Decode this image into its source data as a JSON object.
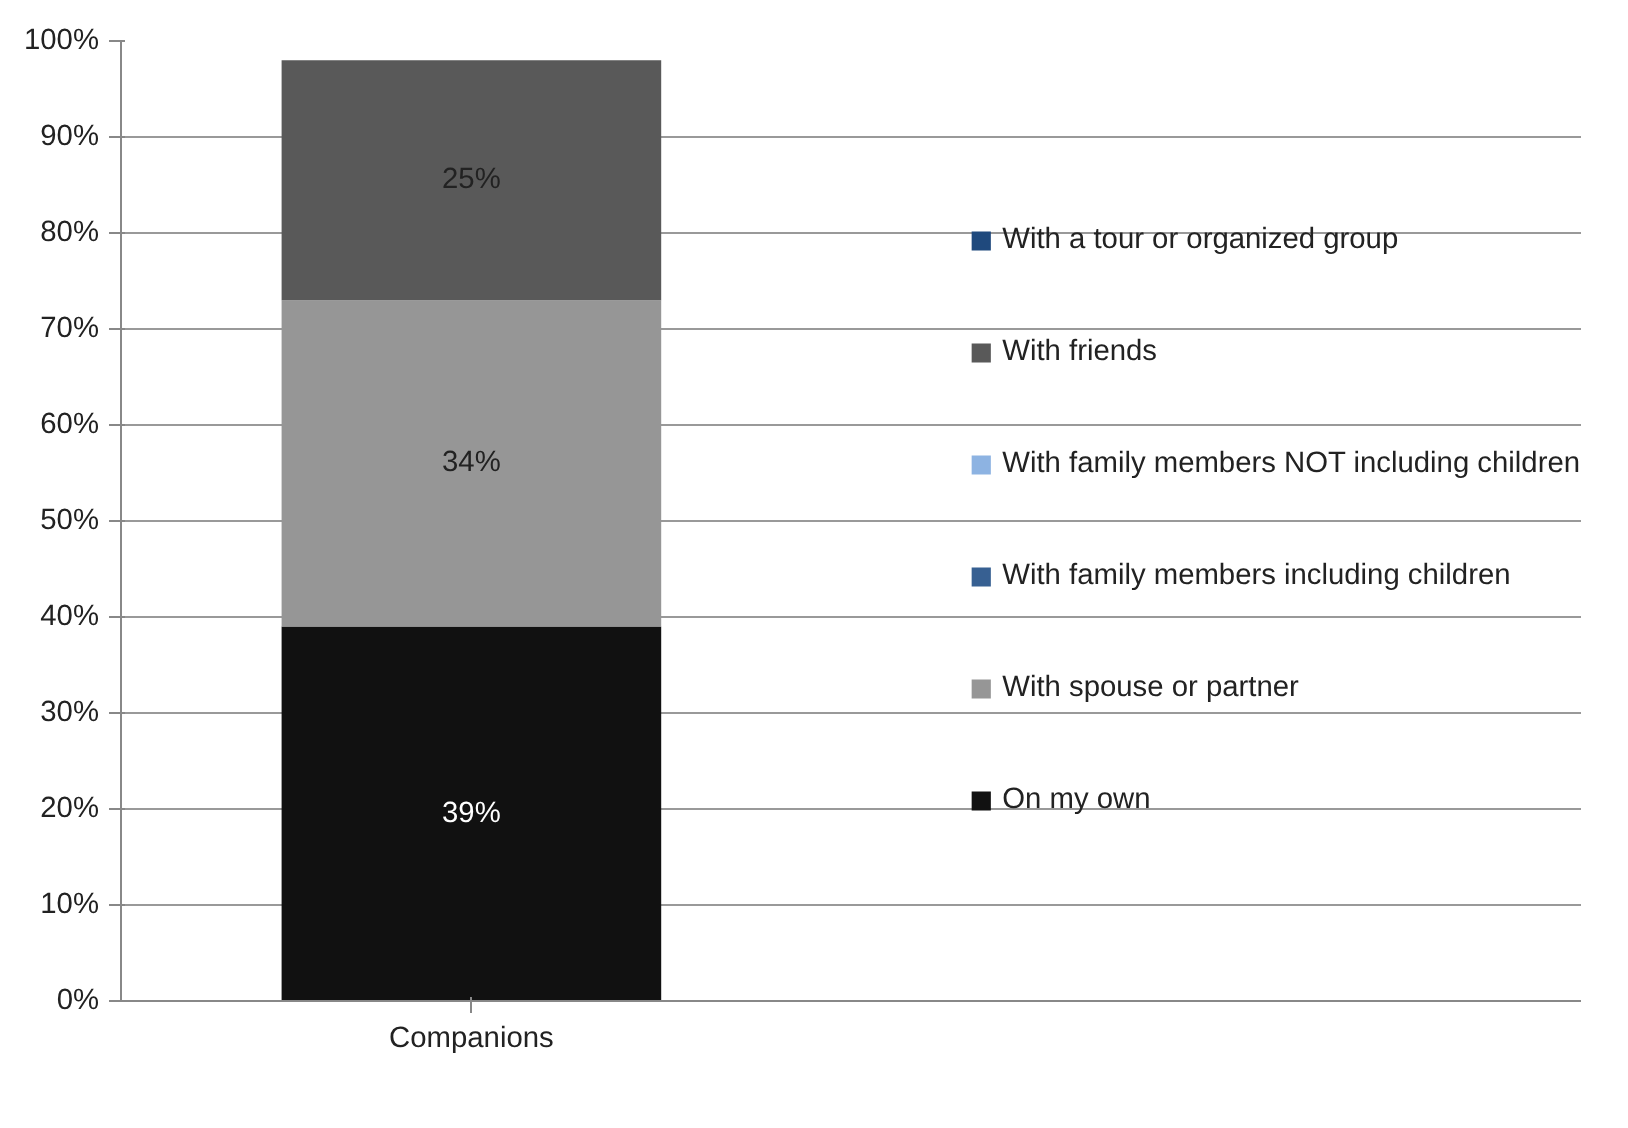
{
  "chart_data": {
    "type": "bar",
    "stacked": true,
    "categories": [
      "Companions"
    ],
    "series": [
      {
        "name": "On my own",
        "color": "#111111",
        "values": [
          39
        ],
        "value_labels": [
          "39%"
        ]
      },
      {
        "name": "With spouse or partner",
        "color": "#969696",
        "values": [
          34
        ],
        "value_labels": [
          "34%"
        ]
      },
      {
        "name": "With family members including children",
        "color": "#376092",
        "values": [
          null
        ]
      },
      {
        "name": "With family members NOT including children",
        "color": "#8db3e2",
        "values": [
          null
        ]
      },
      {
        "name": "With friends",
        "color": "#595959",
        "values": [
          25
        ],
        "value_labels": [
          "25%"
        ]
      },
      {
        "name": "With a tour or organized group",
        "color": "#1f497d",
        "values": [
          null
        ]
      }
    ],
    "ylim": [
      0,
      100
    ],
    "yticks": [
      {
        "value": 0,
        "label": "0%"
      },
      {
        "value": 10,
        "label": "10%"
      },
      {
        "value": 20,
        "label": "20%"
      },
      {
        "value": 30,
        "label": "30%"
      },
      {
        "value": 40,
        "label": "40%"
      },
      {
        "value": 50,
        "label": "50%"
      },
      {
        "value": 60,
        "label": "60%"
      },
      {
        "value": 70,
        "label": "70%"
      },
      {
        "value": 80,
        "label": "80%"
      },
      {
        "value": 90,
        "label": "90%"
      },
      {
        "value": 100,
        "label": "100%"
      }
    ],
    "grid": "y",
    "legend": "right"
  }
}
